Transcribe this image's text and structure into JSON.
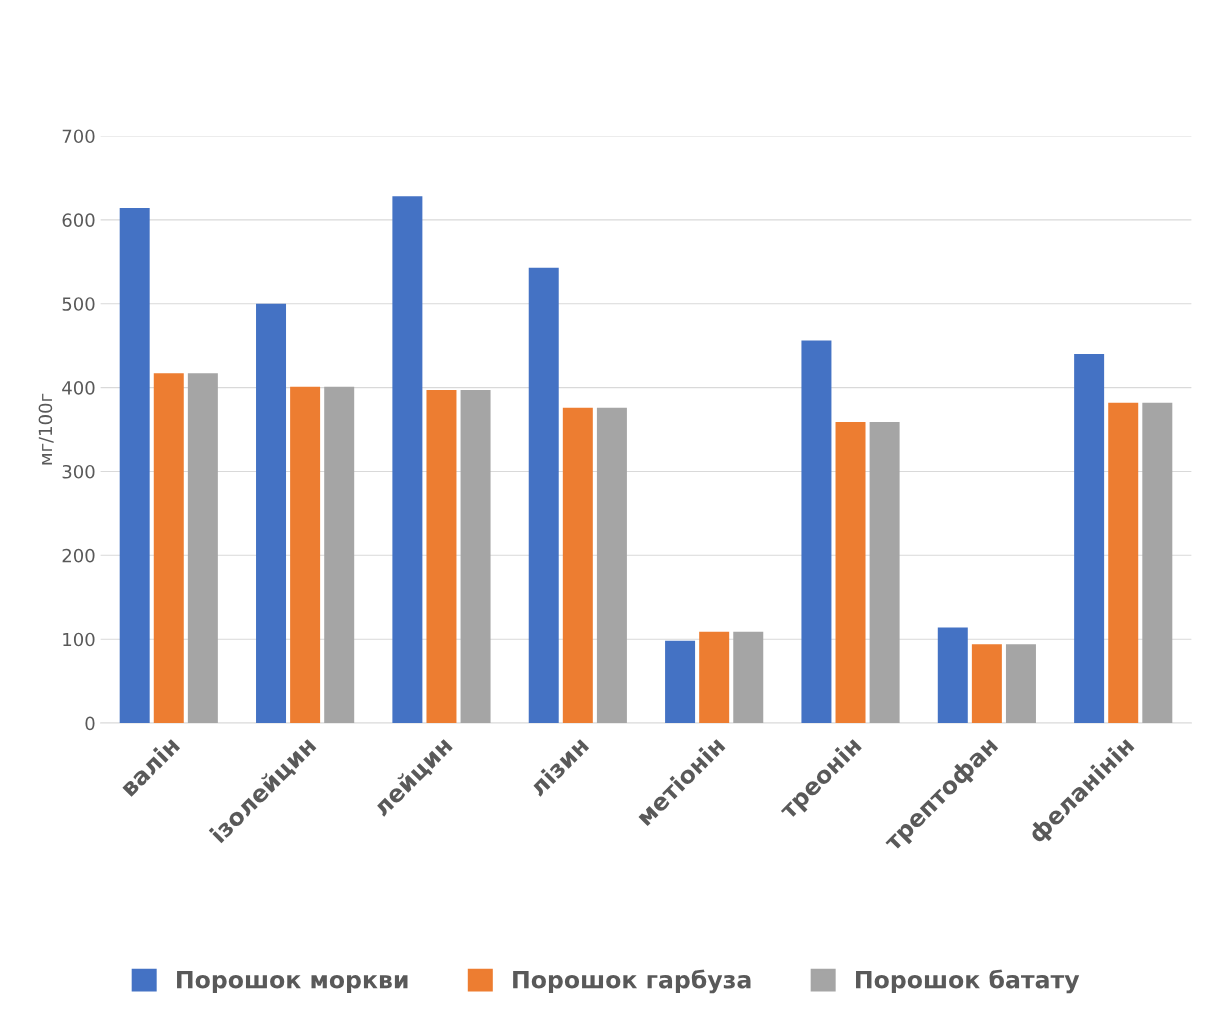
{
  "chart_data": {
    "type": "bar",
    "ylabel": "мг/100г",
    "categories": [
      "валін",
      "ізолейцин",
      "лейцин",
      "лізин",
      "метіонін",
      "треонін",
      "трептофан",
      "феланінін"
    ],
    "series": [
      {
        "name": "Порошок моркви",
        "color": "#4472c4",
        "values": [
          614,
          500,
          628,
          543,
          98,
          456,
          114,
          440
        ]
      },
      {
        "name": "Порошок гарбуза",
        "color": "#ed7d31",
        "values": [
          417,
          401,
          397,
          376,
          109,
          359,
          94,
          382
        ]
      },
      {
        "name": "Порошок батату",
        "color": "#a5a5a5",
        "values": [
          417,
          401,
          397,
          376,
          109,
          359,
          94,
          382
        ]
      }
    ],
    "ylim": [
      0,
      700
    ],
    "yticks": [
      0,
      100,
      200,
      300,
      400,
      500,
      600,
      700
    ],
    "grid": "y",
    "legend": "bottom"
  }
}
